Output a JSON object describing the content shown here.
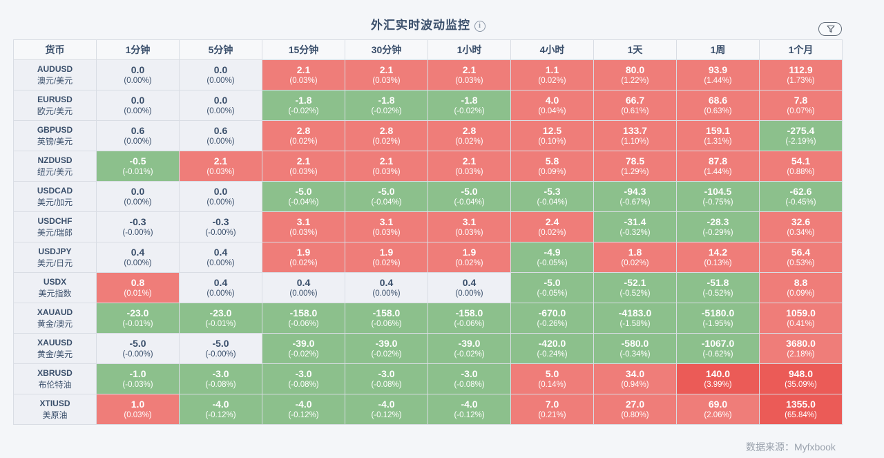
{
  "title": "外汇实时波动监控",
  "info_glyph": "i",
  "source": "数据来源：Myfxbook",
  "colors": {
    "up": "#ef7d79",
    "up_strong": "#eb5b57",
    "down": "#8cc08c",
    "flat": "#eef0f5"
  },
  "headers": [
    "货币",
    "1分钟",
    "5分钟",
    "15分钟",
    "30分钟",
    "1小时",
    "4小时",
    "1天",
    "1周",
    "1个月"
  ],
  "rows": [
    {
      "code": "AUDUSD",
      "name": "澳元/美元",
      "cells": [
        [
          "0.0",
          "(0.00%)",
          "neu"
        ],
        [
          "0.0",
          "(0.00%)",
          "neu"
        ],
        [
          "2.1",
          "(0.03%)",
          "pos"
        ],
        [
          "2.1",
          "(0.03%)",
          "pos"
        ],
        [
          "2.1",
          "(0.03%)",
          "pos"
        ],
        [
          "1.1",
          "(0.02%)",
          "pos"
        ],
        [
          "80.0",
          "(1.22%)",
          "pos"
        ],
        [
          "93.9",
          "(1.44%)",
          "pos"
        ],
        [
          "112.9",
          "(1.73%)",
          "pos"
        ]
      ]
    },
    {
      "code": "EURUSD",
      "name": "欧元/美元",
      "cells": [
        [
          "0.0",
          "(0.00%)",
          "neu"
        ],
        [
          "0.0",
          "(0.00%)",
          "neu"
        ],
        [
          "-1.8",
          "(-0.02%)",
          "neg"
        ],
        [
          "-1.8",
          "(-0.02%)",
          "neg"
        ],
        [
          "-1.8",
          "(-0.02%)",
          "neg"
        ],
        [
          "4.0",
          "(0.04%)",
          "pos"
        ],
        [
          "66.7",
          "(0.61%)",
          "pos"
        ],
        [
          "68.6",
          "(0.63%)",
          "pos"
        ],
        [
          "7.8",
          "(0.07%)",
          "pos"
        ]
      ]
    },
    {
      "code": "GBPUSD",
      "name": "英镑/美元",
      "cells": [
        [
          "0.6",
          "(0.00%)",
          "neu"
        ],
        [
          "0.6",
          "(0.00%)",
          "neu"
        ],
        [
          "2.8",
          "(0.02%)",
          "pos"
        ],
        [
          "2.8",
          "(0.02%)",
          "pos"
        ],
        [
          "2.8",
          "(0.02%)",
          "pos"
        ],
        [
          "12.5",
          "(0.10%)",
          "pos"
        ],
        [
          "133.7",
          "(1.10%)",
          "pos"
        ],
        [
          "159.1",
          "(1.31%)",
          "pos"
        ],
        [
          "-275.4",
          "(-2.19%)",
          "neg"
        ]
      ]
    },
    {
      "code": "NZDUSD",
      "name": "纽元/美元",
      "cells": [
        [
          "-0.5",
          "(-0.01%)",
          "neg"
        ],
        [
          "2.1",
          "(0.03%)",
          "pos"
        ],
        [
          "2.1",
          "(0.03%)",
          "pos"
        ],
        [
          "2.1",
          "(0.03%)",
          "pos"
        ],
        [
          "2.1",
          "(0.03%)",
          "pos"
        ],
        [
          "5.8",
          "(0.09%)",
          "pos"
        ],
        [
          "78.5",
          "(1.29%)",
          "pos"
        ],
        [
          "87.8",
          "(1.44%)",
          "pos"
        ],
        [
          "54.1",
          "(0.88%)",
          "pos"
        ]
      ]
    },
    {
      "code": "USDCAD",
      "name": "美元/加元",
      "cells": [
        [
          "0.0",
          "(0.00%)",
          "neu"
        ],
        [
          "0.0",
          "(0.00%)",
          "neu"
        ],
        [
          "-5.0",
          "(-0.04%)",
          "neg"
        ],
        [
          "-5.0",
          "(-0.04%)",
          "neg"
        ],
        [
          "-5.0",
          "(-0.04%)",
          "neg"
        ],
        [
          "-5.3",
          "(-0.04%)",
          "neg"
        ],
        [
          "-94.3",
          "(-0.67%)",
          "neg"
        ],
        [
          "-104.5",
          "(-0.75%)",
          "neg"
        ],
        [
          "-62.6",
          "(-0.45%)",
          "neg"
        ]
      ]
    },
    {
      "code": "USDCHF",
      "name": "美元/瑞郎",
      "cells": [
        [
          "-0.3",
          "(-0.00%)",
          "neu"
        ],
        [
          "-0.3",
          "(-0.00%)",
          "neu"
        ],
        [
          "3.1",
          "(0.03%)",
          "pos"
        ],
        [
          "3.1",
          "(0.03%)",
          "pos"
        ],
        [
          "3.1",
          "(0.03%)",
          "pos"
        ],
        [
          "2.4",
          "(0.02%)",
          "pos"
        ],
        [
          "-31.4",
          "(-0.32%)",
          "neg"
        ],
        [
          "-28.3",
          "(-0.29%)",
          "neg"
        ],
        [
          "32.6",
          "(0.34%)",
          "pos"
        ]
      ]
    },
    {
      "code": "USDJPY",
      "name": "美元/日元",
      "cells": [
        [
          "0.4",
          "(0.00%)",
          "neu"
        ],
        [
          "0.4",
          "(0.00%)",
          "neu"
        ],
        [
          "1.9",
          "(0.02%)",
          "pos"
        ],
        [
          "1.9",
          "(0.02%)",
          "pos"
        ],
        [
          "1.9",
          "(0.02%)",
          "pos"
        ],
        [
          "-4.9",
          "(-0.05%)",
          "neg"
        ],
        [
          "1.8",
          "(0.02%)",
          "pos"
        ],
        [
          "14.2",
          "(0.13%)",
          "pos"
        ],
        [
          "56.4",
          "(0.53%)",
          "pos"
        ]
      ]
    },
    {
      "code": "USDX",
      "name": "美元指数",
      "cells": [
        [
          "0.8",
          "(0.01%)",
          "pos"
        ],
        [
          "0.4",
          "(0.00%)",
          "neu"
        ],
        [
          "0.4",
          "(0.00%)",
          "neu"
        ],
        [
          "0.4",
          "(0.00%)",
          "neu"
        ],
        [
          "0.4",
          "(0.00%)",
          "neu"
        ],
        [
          "-5.0",
          "(-0.05%)",
          "neg"
        ],
        [
          "-52.1",
          "(-0.52%)",
          "neg"
        ],
        [
          "-51.8",
          "(-0.52%)",
          "neg"
        ],
        [
          "8.8",
          "(0.09%)",
          "pos"
        ]
      ]
    },
    {
      "code": "XAUAUD",
      "name": "黄金/澳元",
      "cells": [
        [
          "-23.0",
          "(-0.01%)",
          "neg"
        ],
        [
          "-23.0",
          "(-0.01%)",
          "neg"
        ],
        [
          "-158.0",
          "(-0.06%)",
          "neg"
        ],
        [
          "-158.0",
          "(-0.06%)",
          "neg"
        ],
        [
          "-158.0",
          "(-0.06%)",
          "neg"
        ],
        [
          "-670.0",
          "(-0.26%)",
          "neg"
        ],
        [
          "-4183.0",
          "(-1.58%)",
          "neg"
        ],
        [
          "-5180.0",
          "(-1.95%)",
          "neg"
        ],
        [
          "1059.0",
          "(0.41%)",
          "pos"
        ]
      ]
    },
    {
      "code": "XAUUSD",
      "name": "黄金/美元",
      "cells": [
        [
          "-5.0",
          "(-0.00%)",
          "neu"
        ],
        [
          "-5.0",
          "(-0.00%)",
          "neu"
        ],
        [
          "-39.0",
          "(-0.02%)",
          "neg"
        ],
        [
          "-39.0",
          "(-0.02%)",
          "neg"
        ],
        [
          "-39.0",
          "(-0.02%)",
          "neg"
        ],
        [
          "-420.0",
          "(-0.24%)",
          "neg"
        ],
        [
          "-580.0",
          "(-0.34%)",
          "neg"
        ],
        [
          "-1067.0",
          "(-0.62%)",
          "neg"
        ],
        [
          "3680.0",
          "(2.18%)",
          "pos"
        ]
      ]
    },
    {
      "code": "XBRUSD",
      "name": "布伦特油",
      "cells": [
        [
          "-1.0",
          "(-0.03%)",
          "neg"
        ],
        [
          "-3.0",
          "(-0.08%)",
          "neg"
        ],
        [
          "-3.0",
          "(-0.08%)",
          "neg"
        ],
        [
          "-3.0",
          "(-0.08%)",
          "neg"
        ],
        [
          "-3.0",
          "(-0.08%)",
          "neg"
        ],
        [
          "5.0",
          "(0.14%)",
          "pos"
        ],
        [
          "34.0",
          "(0.94%)",
          "pos"
        ],
        [
          "140.0",
          "(3.99%)",
          "pos2"
        ],
        [
          "948.0",
          "(35.09%)",
          "pos2"
        ]
      ]
    },
    {
      "code": "XTIUSD",
      "name": "美原油",
      "cells": [
        [
          "1.0",
          "(0.03%)",
          "pos"
        ],
        [
          "-4.0",
          "(-0.12%)",
          "neg"
        ],
        [
          "-4.0",
          "(-0.12%)",
          "neg"
        ],
        [
          "-4.0",
          "(-0.12%)",
          "neg"
        ],
        [
          "-4.0",
          "(-0.12%)",
          "neg"
        ],
        [
          "7.0",
          "(0.21%)",
          "pos"
        ],
        [
          "27.0",
          "(0.80%)",
          "pos"
        ],
        [
          "69.0",
          "(2.06%)",
          "pos"
        ],
        [
          "1355.0",
          "(65.84%)",
          "pos2"
        ]
      ]
    }
  ]
}
